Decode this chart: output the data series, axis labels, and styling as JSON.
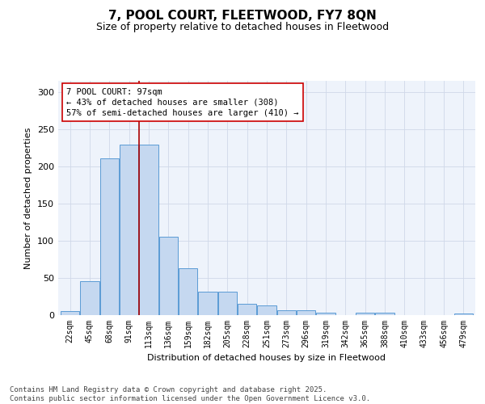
{
  "title": "7, POOL COURT, FLEETWOOD, FY7 8QN",
  "subtitle": "Size of property relative to detached houses in Fleetwood",
  "xlabel": "Distribution of detached houses by size in Fleetwood",
  "ylabel": "Number of detached properties",
  "categories": [
    "22sqm",
    "45sqm",
    "68sqm",
    "91sqm",
    "113sqm",
    "136sqm",
    "159sqm",
    "182sqm",
    "205sqm",
    "228sqm",
    "251sqm",
    "273sqm",
    "296sqm",
    "319sqm",
    "342sqm",
    "365sqm",
    "388sqm",
    "410sqm",
    "433sqm",
    "456sqm",
    "479sqm"
  ],
  "values": [
    5,
    46,
    211,
    229,
    229,
    105,
    63,
    32,
    32,
    15,
    13,
    7,
    6,
    3,
    0,
    3,
    3,
    0,
    0,
    0,
    2
  ],
  "bar_color": "#c5d8f0",
  "bar_edgecolor": "#5b9bd5",
  "grid_color": "#d0d8e8",
  "bg_color": "#eef3fb",
  "vline_color": "#aa0000",
  "annotation_text": "7 POOL COURT: 97sqm\n← 43% of detached houses are smaller (308)\n57% of semi-detached houses are larger (410) →",
  "annotation_box_color": "#cc0000",
  "ylim": [
    0,
    315
  ],
  "yticks": [
    0,
    50,
    100,
    150,
    200,
    250,
    300
  ],
  "footer": "Contains HM Land Registry data © Crown copyright and database right 2025.\nContains public sector information licensed under the Open Government Licence v3.0.",
  "title_fontsize": 11,
  "subtitle_fontsize": 9,
  "annotation_fontsize": 7.5,
  "footer_fontsize": 6.5,
  "ylabel_fontsize": 8,
  "xlabel_fontsize": 8,
  "tick_fontsize": 7
}
